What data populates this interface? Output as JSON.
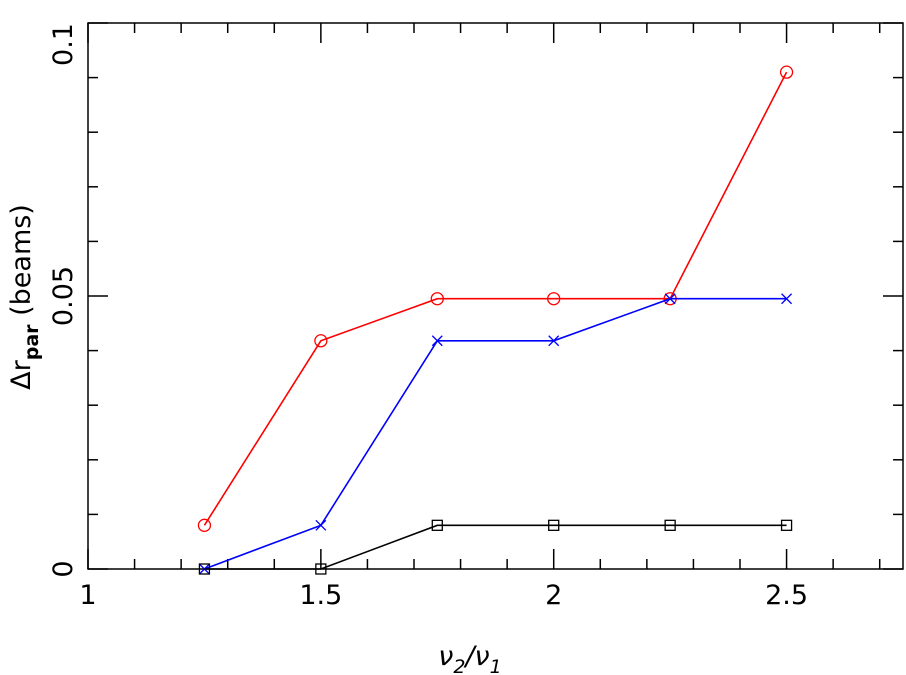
{
  "chart_data": {
    "type": "line",
    "xlabel": {
      "main": "ν",
      "sub": "2",
      "main2": "/ν",
      "sub2": "1"
    },
    "ylabel": {
      "main": "Δr",
      "sub": "par",
      "rest": " (beams)"
    },
    "x": [
      1.25,
      1.5,
      1.75,
      2,
      2.25,
      2.5
    ],
    "series": [
      {
        "color": "#ff0000",
        "marker": "circle",
        "values": [
          0.008,
          0.0418,
          0.0495,
          0.0495,
          0.0495,
          0.091
        ]
      },
      {
        "color": "#0000ff",
        "marker": "x",
        "values": [
          0,
          0.008,
          0.0418,
          0.0418,
          0.0495,
          0.0495
        ]
      },
      {
        "color": "#000000",
        "marker": "square",
        "values": [
          0,
          0,
          0.008,
          0.008,
          0.008,
          0.008
        ]
      }
    ],
    "xlim": [
      1,
      2.75
    ],
    "ylim": [
      0,
      0.1
    ],
    "xticks": [
      1,
      1.5,
      2,
      2.5
    ],
    "yticks": [
      0,
      0.05,
      0.1
    ],
    "xminorticks": [
      1.1,
      1.2,
      1.3,
      1.4,
      1.6,
      1.7,
      1.8,
      1.9,
      2.1,
      2.2,
      2.3,
      2.4,
      2.6,
      2.7
    ],
    "yminorticks": [
      0.01,
      0.02,
      0.03,
      0.04,
      0.06,
      0.07,
      0.08,
      0.09
    ]
  }
}
